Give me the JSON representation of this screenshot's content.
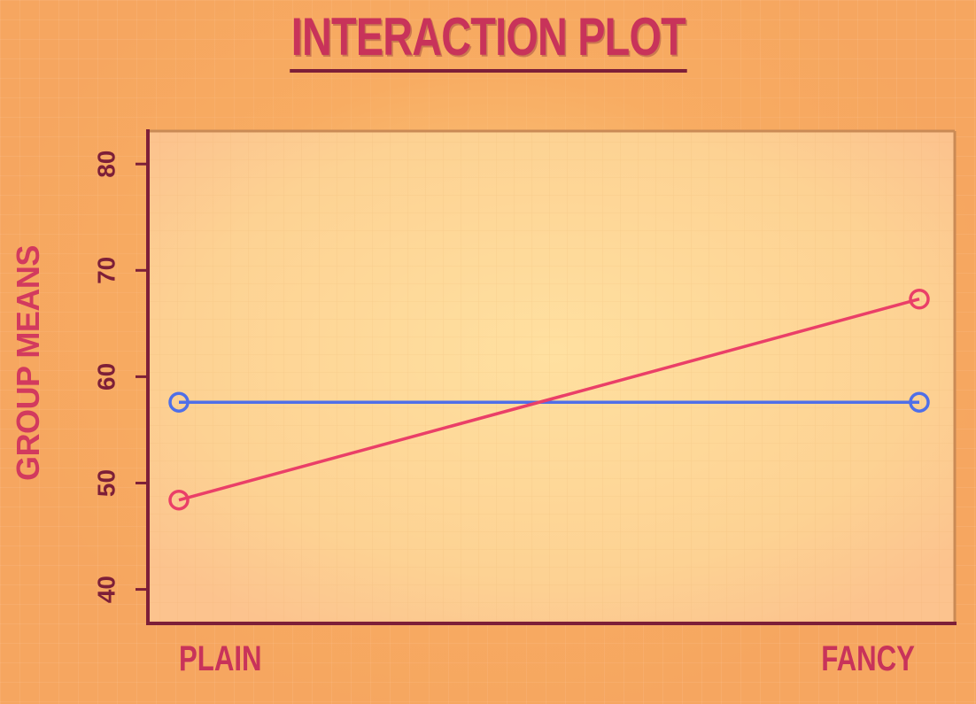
{
  "chart_data": {
    "type": "line",
    "title": "INTERACTION PLOT",
    "xlabel": "",
    "ylabel": "GROUP MEANS",
    "categories": [
      "PLAIN",
      "FANCY"
    ],
    "yticks": [
      "40",
      "50",
      "60",
      "70",
      "80"
    ],
    "ylim": [
      36.8,
      83.1
    ],
    "grid": false,
    "series": [
      {
        "color": "#4f6fe8",
        "values": [
          57.6,
          57.6
        ]
      },
      {
        "color": "#ea3f68",
        "values": [
          48.4,
          67.3
        ]
      }
    ]
  },
  "colors": {
    "title": "#c8335a",
    "axis": "#7d1f38",
    "plot_background": "#fcd898"
  }
}
